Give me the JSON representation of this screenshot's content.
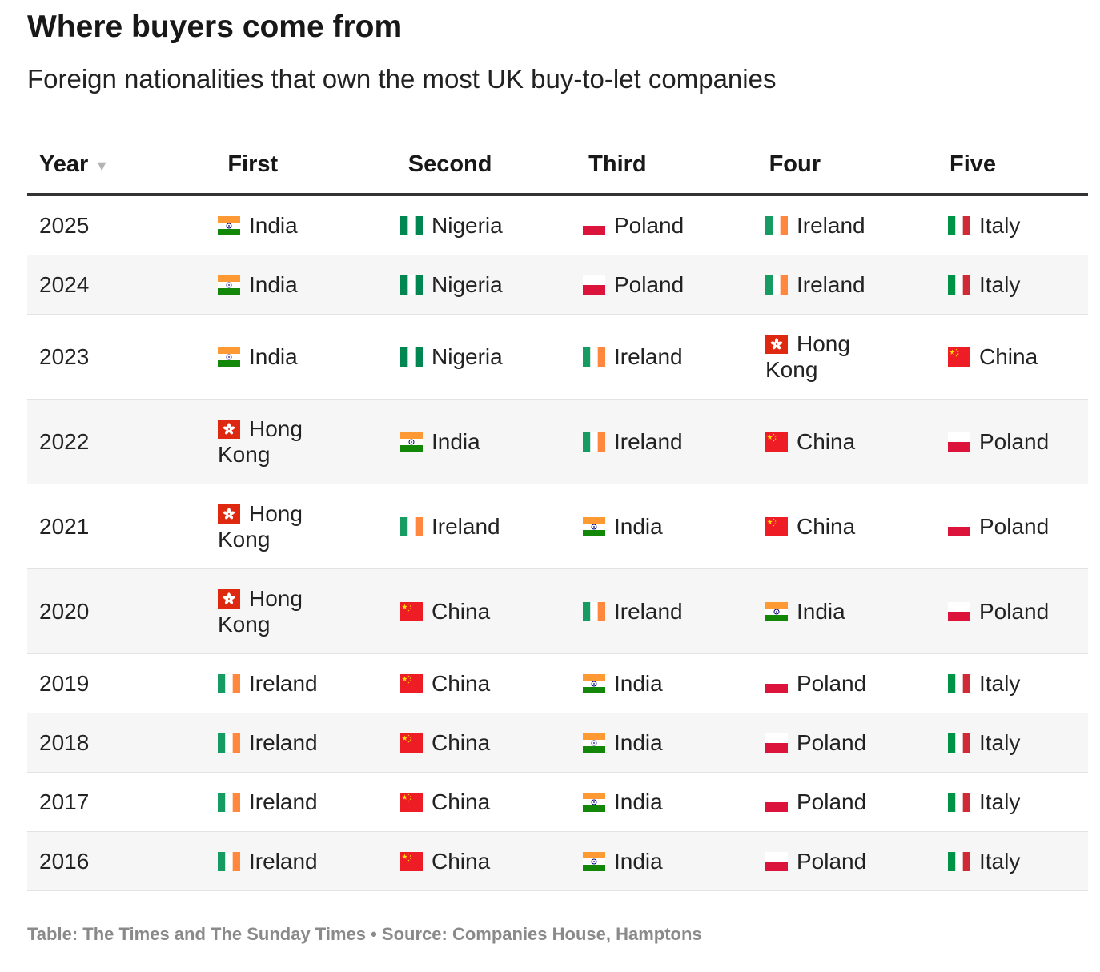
{
  "title": "Where buyers come from",
  "subtitle": "Foreign nationalities that own the most UK buy-to-let companies",
  "footer": "Table: The Times and The Sunday Times • Source: Companies House, Hamptons",
  "sort_indicator": "▼",
  "chart_data": {
    "type": "table",
    "title": "Where buyers come from",
    "subtitle": "Foreign nationalities that own the most UK buy-to-let companies",
    "columns": [
      "Year",
      "First",
      "Second",
      "Third",
      "Four",
      "Five"
    ],
    "sorted_by": "Year",
    "rows": [
      {
        "year": "2025",
        "ranks": [
          "India",
          "Nigeria",
          "Poland",
          "Ireland",
          "Italy"
        ]
      },
      {
        "year": "2024",
        "ranks": [
          "India",
          "Nigeria",
          "Poland",
          "Ireland",
          "Italy"
        ]
      },
      {
        "year": "2023",
        "ranks": [
          "India",
          "Nigeria",
          "Ireland",
          "Hong Kong",
          "China"
        ]
      },
      {
        "year": "2022",
        "ranks": [
          "Hong Kong",
          "India",
          "Ireland",
          "China",
          "Poland"
        ]
      },
      {
        "year": "2021",
        "ranks": [
          "Hong Kong",
          "Ireland",
          "India",
          "China",
          "Poland"
        ]
      },
      {
        "year": "2020",
        "ranks": [
          "Hong Kong",
          "China",
          "Ireland",
          "India",
          "Poland"
        ]
      },
      {
        "year": "2019",
        "ranks": [
          "Ireland",
          "China",
          "India",
          "Poland",
          "Italy"
        ]
      },
      {
        "year": "2018",
        "ranks": [
          "Ireland",
          "China",
          "India",
          "Poland",
          "Italy"
        ]
      },
      {
        "year": "2017",
        "ranks": [
          "Ireland",
          "China",
          "India",
          "Poland",
          "Italy"
        ]
      },
      {
        "year": "2016",
        "ranks": [
          "Ireland",
          "China",
          "India",
          "Poland",
          "Italy"
        ]
      }
    ]
  },
  "flag_icons": {
    "India": "india-flag-icon",
    "Nigeria": "nigeria-flag-icon",
    "Poland": "poland-flag-icon",
    "Ireland": "ireland-flag-icon",
    "Italy": "italy-flag-icon",
    "Hong Kong": "hong-kong-flag-icon",
    "China": "china-flag-icon"
  },
  "colors": {
    "header_rule": "#333333",
    "row_shade": "#f6f6f6",
    "footer_text": "#8a8a8a",
    "india_saffron": "#ff9933",
    "india_green": "#138808",
    "nigeria_green": "#008751",
    "poland_red": "#dc143c",
    "ireland_green": "#169b62",
    "ireland_orange": "#ff883e",
    "italy_green": "#009246",
    "italy_red": "#ce2b37",
    "china_red": "#ee1c25",
    "china_star": "#ffde00",
    "hong_kong_red": "#de2910"
  }
}
